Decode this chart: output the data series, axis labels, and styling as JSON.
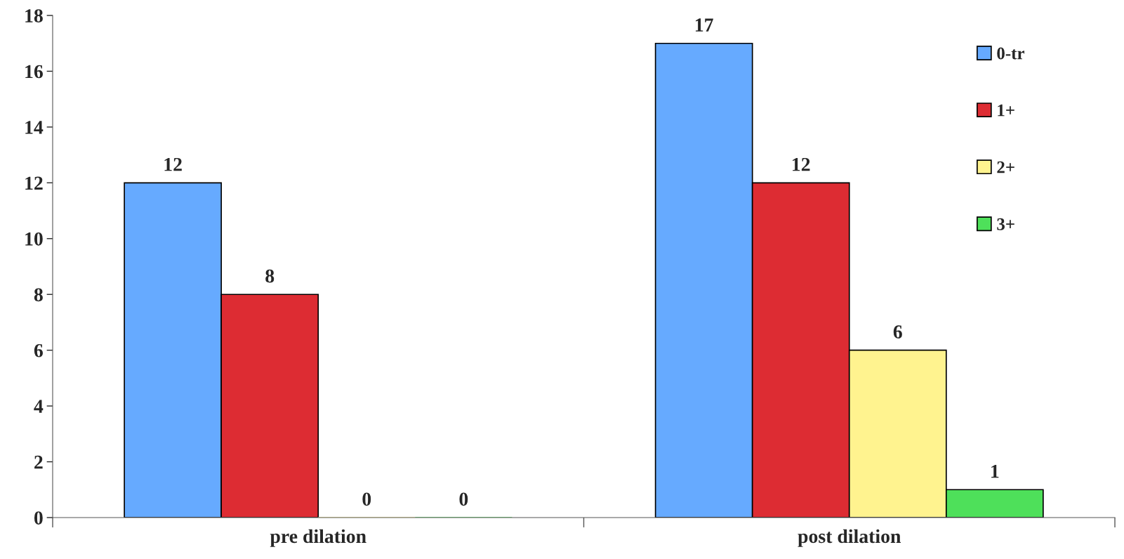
{
  "chart_data": {
    "type": "bar",
    "categories": [
      "pre dilation",
      "post dilation"
    ],
    "series": [
      {
        "name": "0-tr",
        "color": "#66aaff",
        "values": [
          12,
          17
        ]
      },
      {
        "name": "1+",
        "color": "#dd2c33",
        "values": [
          8,
          12
        ]
      },
      {
        "name": "2+",
        "color": "#fff38f",
        "values": [
          0,
          6
        ]
      },
      {
        "name": "3+",
        "color": "#4ee05a",
        "values": [
          0,
          1
        ]
      }
    ],
    "ylim": [
      0,
      18
    ],
    "yticks": [
      0,
      2,
      4,
      6,
      8,
      10,
      12,
      14,
      16,
      18
    ],
    "data_labels": true,
    "legend": "top right",
    "grid": false
  }
}
